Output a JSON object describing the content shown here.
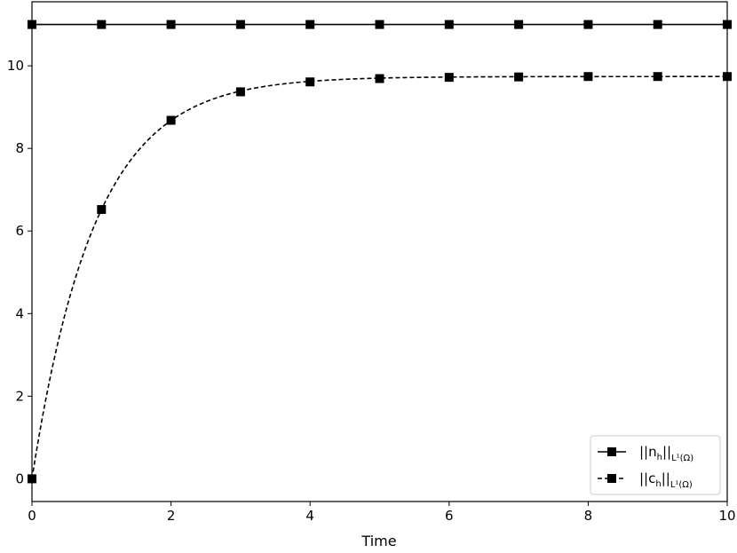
{
  "chart_data": {
    "type": "line",
    "title": "",
    "xlabel": "Time",
    "ylabel": "",
    "xlim": [
      0,
      10
    ],
    "ylim": [
      -0.55,
      11.55
    ],
    "xticks": [
      0,
      2,
      4,
      6,
      8,
      10
    ],
    "yticks": [
      0,
      2,
      4,
      6,
      8,
      10
    ],
    "grid": false,
    "legend_position": "bottom-right",
    "x": [
      0,
      1,
      2,
      3,
      4,
      5,
      6,
      7,
      8,
      9,
      10
    ],
    "series": [
      {
        "name": "||n_h||_{L^1(Ω)}",
        "legend_main": "||n",
        "legend_sub1": "h",
        "legend_mid": "||",
        "legend_sub2": "L¹(Ω)",
        "style": "solid",
        "marker": "square",
        "color": "#000000",
        "values": [
          11.0,
          11.0,
          11.0,
          11.0,
          11.0,
          11.0,
          11.0,
          11.0,
          11.0,
          11.0,
          11.0
        ]
      },
      {
        "name": "||c_h||_{L^1(Ω)}",
        "legend_main": "||c",
        "legend_sub1": "h",
        "legend_mid": "||",
        "legend_sub2": "L¹(Ω)",
        "style": "dashed",
        "marker": "square",
        "color": "#000000",
        "values": [
          0.0,
          6.52,
          8.68,
          9.37,
          9.61,
          9.69,
          9.72,
          9.73,
          9.74,
          9.74,
          9.74
        ]
      }
    ]
  }
}
